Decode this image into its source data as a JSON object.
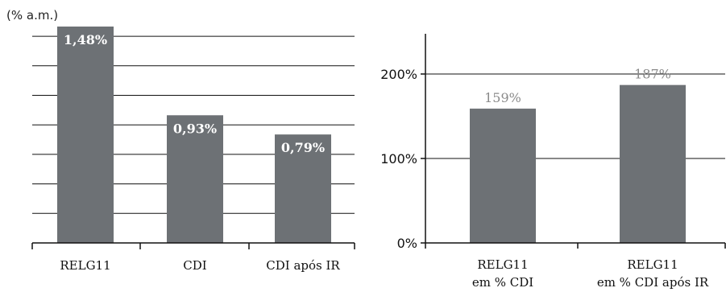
{
  "chart_data": [
    {
      "type": "bar",
      "unit_label": "(% a.m.)",
      "categories": [
        "RELG11",
        "CDI",
        "CDI após IR"
      ],
      "values": [
        1.48,
        0.93,
        0.79
      ],
      "data_labels": [
        "1,48%",
        "0,93%",
        "0,79%"
      ],
      "ylim": [
        0,
        1.5
      ],
      "grid": true,
      "bar_color": "#6d7175"
    },
    {
      "type": "bar",
      "categories": [
        [
          "RELG11",
          "em % CDI"
        ],
        [
          "RELG11",
          "em % CDI após IR"
        ]
      ],
      "values": [
        159,
        187
      ],
      "data_labels": [
        "159%",
        "187%"
      ],
      "yticks": [
        "0%",
        "100%",
        "200%"
      ],
      "ylim": [
        0,
        250
      ],
      "grid": true,
      "bar_color": "#6d7175"
    }
  ]
}
